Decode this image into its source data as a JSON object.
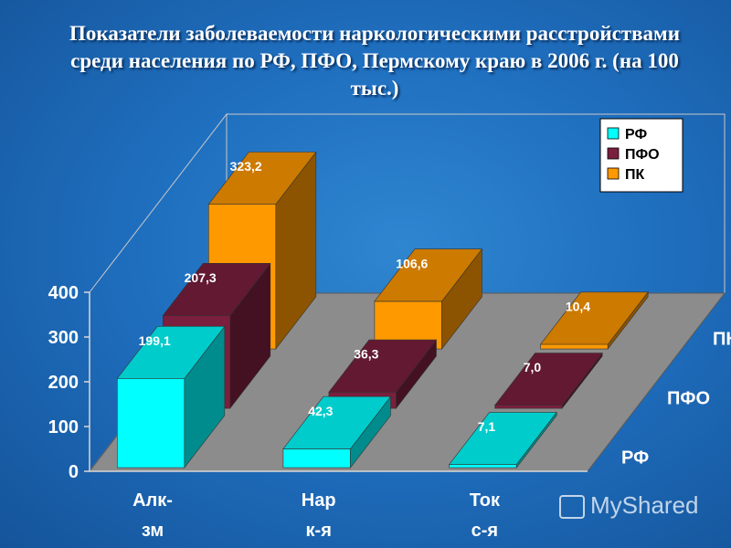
{
  "title": "Показатели заболеваемости наркологическими расстройствами  среди населения по РФ, ПФО, Пермскому краю в 2006 г. (на 100 тыс.)",
  "watermark": "MyShared",
  "chart_data": {
    "type": "bar",
    "variant": "3d-column",
    "title": "Показатели заболеваемости наркологическими расстройствами  среди населения по РФ, ПФО, Пермскому краю в 2006 г. (на 100 тыс.)",
    "categories": [
      "Алк-зм",
      "Нар к-я",
      "Ток с-я"
    ],
    "category_lines": [
      [
        "Алк-",
        "зм"
      ],
      [
        "Нар",
        "к-я"
      ],
      [
        "Ток",
        "с-я"
      ]
    ],
    "series": [
      {
        "name": "РФ",
        "values": [
          199.1,
          42.3,
          7.1
        ],
        "labels": [
          "199,1",
          "42,3",
          "7,1"
        ],
        "color": "#00ffff"
      },
      {
        "name": "ПФО",
        "values": [
          207.3,
          36.3,
          7.0
        ],
        "labels": [
          "207,3",
          "36,3",
          "7,0"
        ],
        "color": "#7a1f3d"
      },
      {
        "name": "ПК",
        "values": [
          323.2,
          106.6,
          10.4
        ],
        "labels": [
          "323,2",
          "106,6",
          "10,4"
        ],
        "color": "#ff9900"
      }
    ],
    "yticks": [
      0,
      100,
      200,
      300,
      400
    ],
    "ylim": [
      0,
      400
    ],
    "legend": "top-right",
    "grid": false
  }
}
